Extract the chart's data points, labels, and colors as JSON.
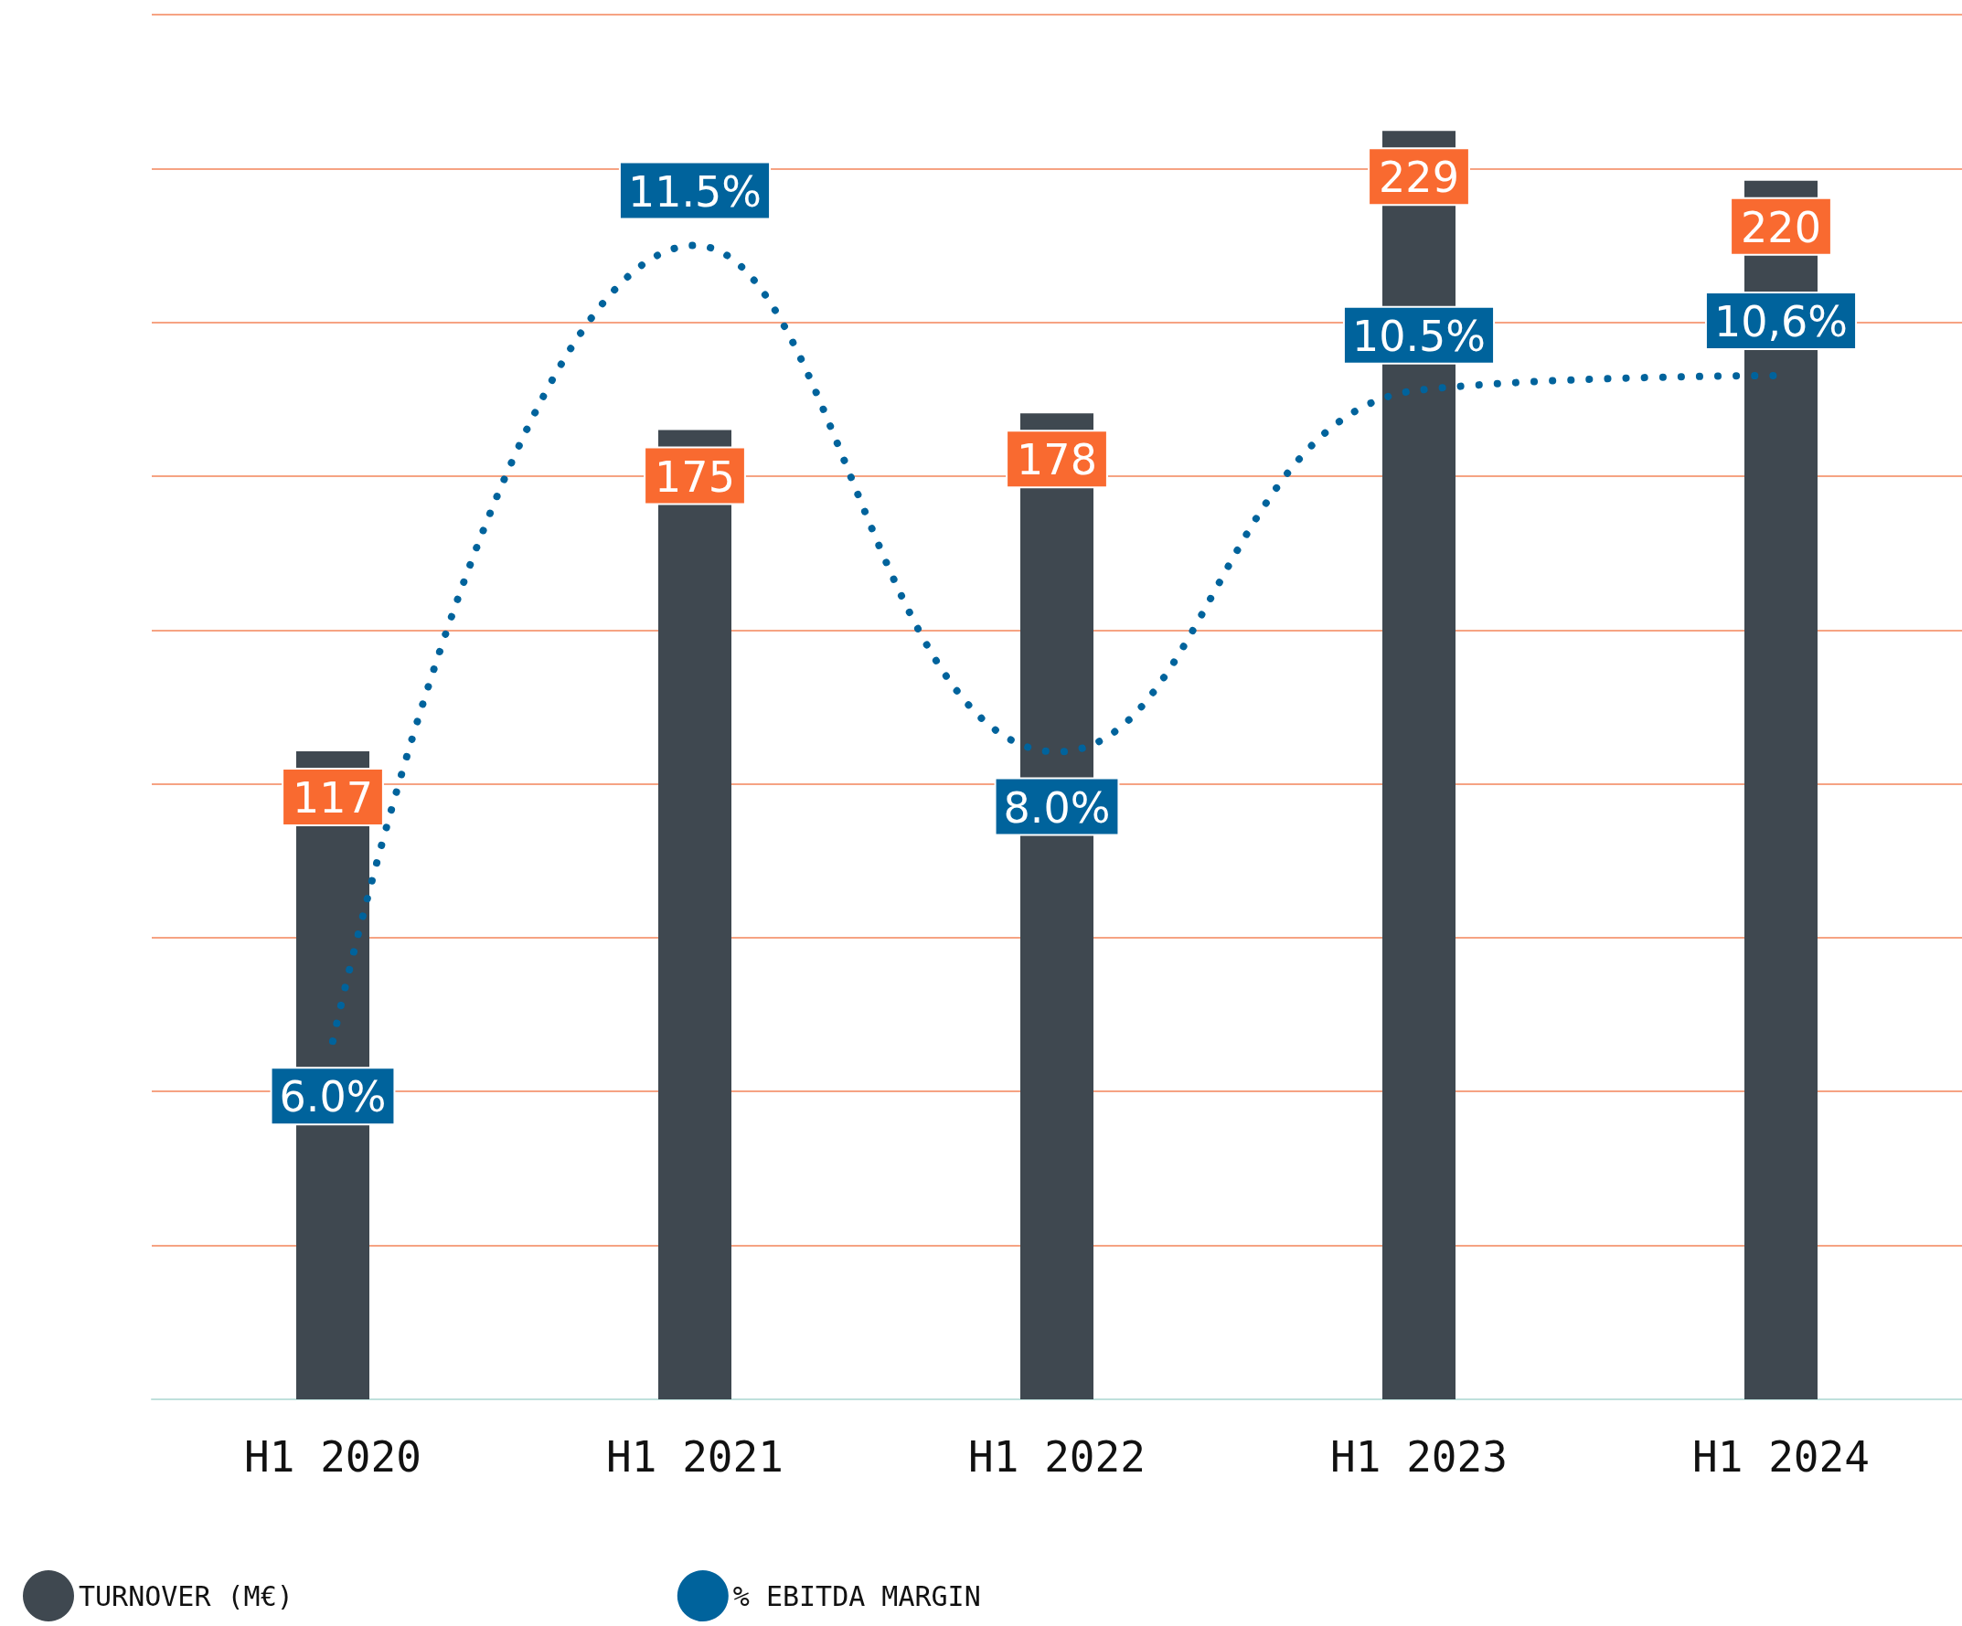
{
  "chart_data": {
    "type": "bar",
    "categories": [
      "H1 2020",
      "H1 2021",
      "H1 2022",
      "H1 2023",
      "H1 2024"
    ],
    "series": [
      {
        "name": "TURNOVER (M€)",
        "color": "#3f4850",
        "values": [
          117,
          175,
          178,
          229,
          220
        ],
        "value_labels": [
          "117",
          "175",
          "178",
          "229",
          "220"
        ]
      },
      {
        "name": "% EBITDA MARGIN",
        "type": "line",
        "axis": "y2",
        "color": "#00639c",
        "values": [
          6.0,
          11.5,
          8.0,
          10.5,
          10.6
        ],
        "value_labels": [
          "6.0%",
          "11.5%",
          "8.0%",
          "10.5%",
          "10,6%"
        ],
        "line_style": "dotted",
        "marker": "none"
      }
    ],
    "ylim": [
      0,
      250
    ],
    "yticks": [
      {
        "value": 27.8,
        "label": null
      },
      {
        "value": 55.6,
        "label": null
      },
      {
        "value": 83.3,
        "label": null
      },
      {
        "value": 111.1,
        "label": null
      },
      {
        "value": 138.9,
        "label": null
      },
      {
        "value": 166.7,
        "label": null
      },
      {
        "value": 194.4,
        "label": null
      },
      {
        "value": 222.2,
        "label": null
      },
      {
        "value": 250,
        "label": null
      }
    ],
    "grid": "y",
    "tick_labels": "x",
    "legend": "bottom left"
  }
}
